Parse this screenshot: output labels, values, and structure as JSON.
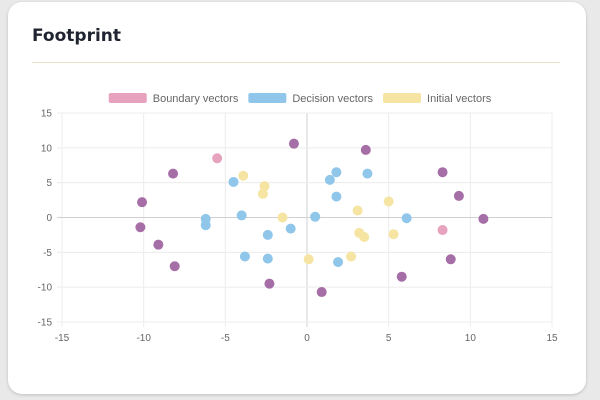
{
  "card": {
    "title": "Footprint"
  },
  "chart_data": {
    "type": "scatter",
    "title": "",
    "xlabel": "",
    "ylabel": "",
    "xlim": [
      -15,
      15
    ],
    "ylim": [
      -15,
      15
    ],
    "xticks": [
      -15,
      -10,
      -5,
      0,
      5,
      10,
      15
    ],
    "yticks": [
      -15,
      -10,
      -5,
      0,
      5,
      10,
      15
    ],
    "grid": true,
    "legend_position": "top",
    "series": [
      {
        "name": "Boundary vectors",
        "color": "#e7a3bd",
        "points": [
          [
            -5.5,
            8.5
          ],
          [
            8.3,
            -1.8
          ]
        ]
      },
      {
        "name": "Decision vectors",
        "color": "#8fc6ea",
        "points": [
          [
            -4.5,
            5.1
          ],
          [
            -6.2,
            -0.2
          ],
          [
            -6.2,
            -1.1
          ],
          [
            -4.0,
            0.3
          ],
          [
            -3.8,
            -5.6
          ],
          [
            -2.4,
            -2.5
          ],
          [
            -2.4,
            -5.9
          ],
          [
            -1.0,
            -1.6
          ],
          [
            0.5,
            0.1
          ],
          [
            1.4,
            5.4
          ],
          [
            1.8,
            6.5
          ],
          [
            1.8,
            3.0
          ],
          [
            1.9,
            -6.4
          ],
          [
            3.7,
            6.3
          ],
          [
            6.1,
            -0.1
          ]
        ]
      },
      {
        "name": "Initial vectors",
        "color": "#f5e4a2",
        "points": [
          [
            -3.9,
            6.0
          ],
          [
            -2.6,
            4.5
          ],
          [
            -2.7,
            3.4
          ],
          [
            -1.5,
            0.0
          ],
          [
            0.1,
            -6.0
          ],
          [
            2.7,
            -5.6
          ],
          [
            3.1,
            1.0
          ],
          [
            3.2,
            -2.2
          ],
          [
            3.5,
            -2.8
          ],
          [
            5.0,
            2.3
          ],
          [
            5.3,
            -2.4
          ]
        ]
      },
      {
        "name": "",
        "color": "#a66ea6",
        "points": [
          [
            -0.8,
            10.6
          ],
          [
            3.6,
            9.7
          ],
          [
            -10.1,
            2.2
          ],
          [
            -10.2,
            -1.4
          ],
          [
            -9.1,
            -3.9
          ],
          [
            -8.2,
            6.3
          ],
          [
            -8.1,
            -7.0
          ],
          [
            -2.3,
            -9.5
          ],
          [
            0.9,
            -10.7
          ],
          [
            5.8,
            -8.5
          ],
          [
            8.3,
            6.5
          ],
          [
            9.3,
            3.1
          ],
          [
            8.8,
            -6.0
          ],
          [
            10.8,
            -0.2
          ]
        ]
      }
    ]
  }
}
